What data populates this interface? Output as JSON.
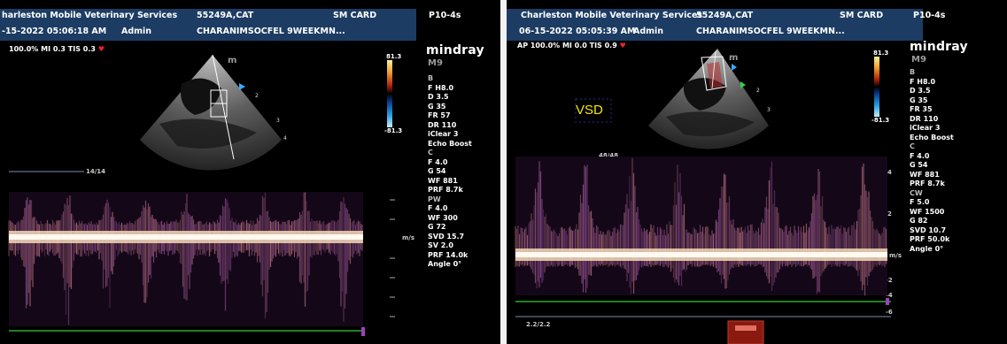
{
  "left": {
    "header": {
      "clinic": "harleston Mobile Veterinary Services",
      "patient_id": "55249A,CAT",
      "preset": "SM CARD",
      "probe": "P10-4s",
      "datetime": "-15-2022  05:06:18 AM",
      "operator": "Admin"
    },
    "status": {
      "text": "100.0%  MI 0.3 TIS 0.3",
      "heart": "♥"
    },
    "brand": "mindray",
    "model": "M9",
    "colorbar": {
      "top": "81.3",
      "bottom": "-81.3",
      "colors": [
        "#f5f0a0",
        "#f0a030",
        "#d03010",
        "#600000",
        "#000000",
        "#0a3a8a",
        "#2aa0e0",
        "#c8f0ff"
      ]
    },
    "params": [
      {
        "text": "B",
        "section": true
      },
      {
        "text": "F H8.0"
      },
      {
        "text": "D 3.5"
      },
      {
        "text": "G 35"
      },
      {
        "text": "FR 57"
      },
      {
        "text": "DR 110"
      },
      {
        "text": "iClear 3"
      },
      {
        "text": "Echo Boost"
      },
      {
        "text": "C",
        "section": true
      },
      {
        "text": "F 4.0"
      },
      {
        "text": "G 54"
      },
      {
        "text": "WF 881"
      },
      {
        "text": "PRF 8.7k"
      },
      {
        "text": "PW",
        "section": true
      },
      {
        "text": "F 4.0"
      },
      {
        "text": "WF 300"
      },
      {
        "text": "G 72"
      },
      {
        "text": "SVD 15.7"
      },
      {
        "text": "SV 2.0"
      },
      {
        "text": "PRF 14.0k"
      },
      {
        "text": "Angle 0°"
      }
    ],
    "sweep_label": "14/14",
    "baseline_label": "m/s",
    "marker": "m"
  },
  "right": {
    "header": {
      "clinic": "Charleston Mobile Veterinary Services",
      "patient_id": "55249A,CAT",
      "preset": "SM CARD",
      "probe": "P10-4s",
      "datetime": "06-15-2022  05:05:39 AM",
      "operator": "Admin",
      "description": "CHARANIMSOCFEL 9WEEKMN..."
    },
    "status": {
      "text": "AP 100.0%  MI 0.0 TIS 0.9",
      "heart": "♥"
    },
    "brand": "mindray",
    "model": "M9",
    "annotation": "VSD",
    "colorbar": {
      "top": "81.3",
      "bottom": "-81.3"
    },
    "params": [
      {
        "text": "B",
        "section": true
      },
      {
        "text": "F H8.0"
      },
      {
        "text": "D 3.5"
      },
      {
        "text": "G 35"
      },
      {
        "text": "FR 35"
      },
      {
        "text": "DR 110"
      },
      {
        "text": "iClear 3"
      },
      {
        "text": "Echo Boost"
      },
      {
        "text": "C",
        "section": true
      },
      {
        "text": "F 4.0"
      },
      {
        "text": "G 54"
      },
      {
        "text": "WF 881"
      },
      {
        "text": "PRF 8.7k"
      },
      {
        "text": "CW",
        "section": true
      },
      {
        "text": "F 5.0"
      },
      {
        "text": "WF 1500"
      },
      {
        "text": "G 82"
      },
      {
        "text": "SVD 10.7"
      },
      {
        "text": "PRF 50.0k"
      },
      {
        "text": "Angle 0°"
      }
    ],
    "sweep_label": "48/48",
    "baseline_label": "m/s",
    "bottom_label": "2.2/2.2",
    "marker": "m",
    "scale_ticks": [
      "4",
      "2",
      "-2",
      "-4",
      "-6"
    ]
  },
  "left_description": "CHARANIMSOCFEL 9WEEKMN..."
}
